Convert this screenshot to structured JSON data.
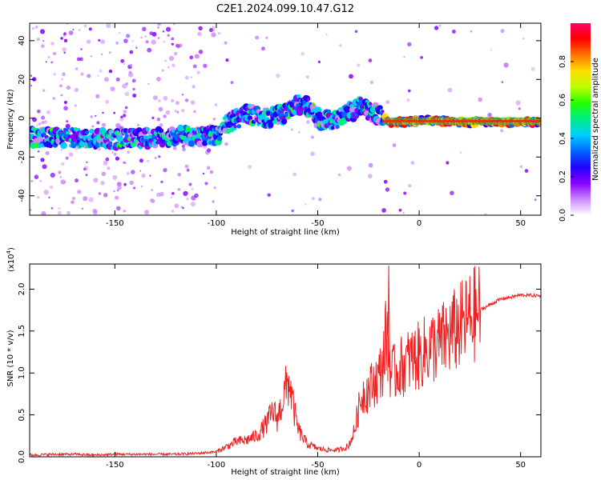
{
  "title": "C2E1.2024.099.10.47.G12",
  "colors": {
    "line": "#ee2222",
    "axis": "#000000"
  },
  "colorbar": {
    "label": "Normalized spectral amplitude",
    "ticks": [
      "0.0",
      "0.2",
      "0.4",
      "0.6",
      "0.8"
    ],
    "tick_values": [
      0.0,
      0.2,
      0.4,
      0.6,
      0.8
    ],
    "range": [
      0,
      1
    ],
    "colormap": [
      "#ffffff",
      "#cc88ff",
      "#8800ff",
      "#2200ff",
      "#0066ff",
      "#00ccff",
      "#00ee88",
      "#22ff00",
      "#bbff00",
      "#ffdd00",
      "#ff7700",
      "#ff0000",
      "#ff0066"
    ]
  },
  "chart_data": [
    {
      "type": "heatmap",
      "xlabel": "Height of straight line (km)",
      "ylabel": "Frequency (Hz)",
      "xlim": [
        -192,
        60
      ],
      "ylim": [
        -50,
        49
      ],
      "xticks": [
        -150,
        -100,
        -50,
        0,
        50
      ],
      "xtick_labels": [
        "-150",
        "-100",
        "-50",
        "0",
        "50"
      ],
      "yticks": [
        -40,
        -20,
        0,
        20,
        40
      ],
      "ytick_labels": [
        "-40",
        "-20",
        "0",
        "20",
        "40"
      ],
      "ridge": {
        "x": [
          -192,
          -170,
          -150,
          -130,
          -115,
          -100,
          -95,
          -85,
          -75,
          -65,
          -60,
          -55,
          -50,
          -45,
          -40,
          -35,
          -28,
          -25,
          -20,
          -15,
          -5,
          0,
          20,
          40,
          60
        ],
        "y": [
          -10,
          -10,
          -11,
          -10,
          -9,
          -9,
          -3,
          2,
          0,
          3,
          7,
          6,
          0,
          -1,
          0,
          3,
          6,
          4,
          2,
          -2,
          -2,
          -1,
          -2,
          -2,
          -2
        ]
      }
    },
    {
      "type": "line",
      "xlabel": "Height of straight line (km)",
      "ylabel": "SNR (10 * v/v)",
      "yscale_label": "(x10",
      "yscale_exponent": "4",
      "yunit": 10000,
      "xlim": [
        -192,
        60
      ],
      "ylim": [
        0,
        2.3
      ],
      "xticks": [
        -150,
        -100,
        -50,
        0,
        50
      ],
      "xtick_labels": [
        "-150",
        "-100",
        "-50",
        "0",
        "50"
      ],
      "yticks": [
        0.0,
        0.5,
        1.0,
        1.5,
        2.0
      ],
      "ytick_labels": [
        "0.0",
        "0.5",
        "1.0",
        "1.5",
        "2.0"
      ],
      "series": [
        {
          "values_x": [
            -192,
            -180,
            -170,
            -160,
            -150,
            -140,
            -130,
            -120,
            -110,
            -100,
            -95,
            -90,
            -85,
            -80,
            -75,
            -72,
            -70,
            -68,
            -66,
            -64,
            -62,
            -60,
            -58,
            -55,
            -50,
            -45,
            -40,
            -35,
            -32,
            -30,
            -28,
            -25,
            -22,
            -20,
            -18,
            -16,
            -15,
            -14,
            -12,
            -10,
            -5,
            0,
            5,
            10,
            15,
            20,
            25,
            30,
            40,
            50,
            60
          ],
          "values_y": [
            0.02,
            0.03,
            0.03,
            0.02,
            0.03,
            0.03,
            0.03,
            0.03,
            0.04,
            0.06,
            0.12,
            0.18,
            0.2,
            0.25,
            0.4,
            0.55,
            0.45,
            0.6,
            0.8,
            0.9,
            0.6,
            0.35,
            0.25,
            0.15,
            0.1,
            0.08,
            0.08,
            0.12,
            0.3,
            0.55,
            0.75,
            0.8,
            0.9,
            0.95,
            1.1,
            1.5,
            1.3,
            1.0,
            1.0,
            1.05,
            1.15,
            1.2,
            1.3,
            1.35,
            1.45,
            1.55,
            1.65,
            1.75,
            1.88,
            1.93,
            1.92
          ]
        }
      ]
    }
  ]
}
